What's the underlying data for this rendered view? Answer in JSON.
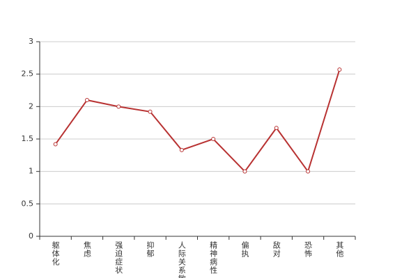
{
  "chart_data": {
    "type": "line",
    "categories": [
      "躯体化",
      "焦虑",
      "强迫症状",
      "抑郁",
      "人际关系敏感",
      "精神病性",
      "偏执",
      "敌对",
      "恐怖",
      "其他"
    ],
    "values": [
      1.42,
      2.1,
      2.0,
      1.92,
      1.33,
      1.5,
      1.0,
      1.67,
      1.0,
      2.57
    ],
    "color": "#b83232",
    "ylim": [
      0,
      3
    ],
    "yticks": [
      0,
      0.5,
      1,
      1.5,
      2,
      2.5,
      3
    ],
    "grid": true
  }
}
